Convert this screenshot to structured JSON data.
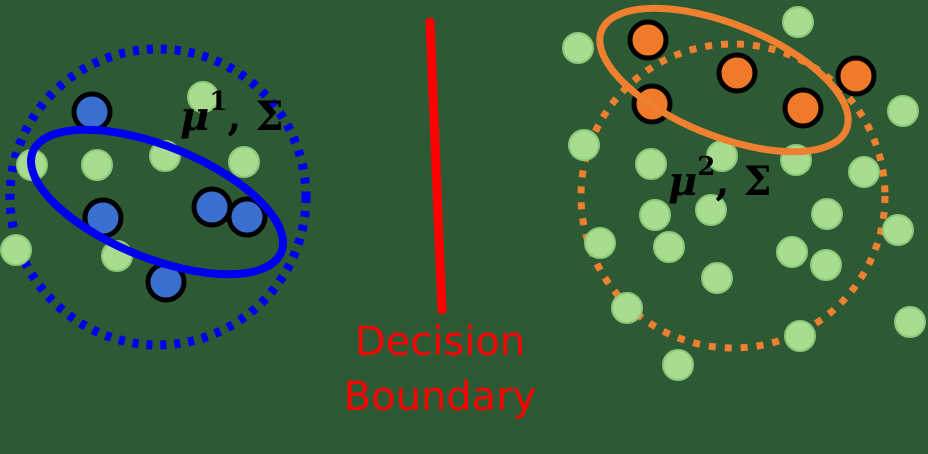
{
  "colors": {
    "background": "#2e5935",
    "decision_boundary": "#ff0000",
    "class1": "#3a6fd0",
    "class1_outline": "#0000ee",
    "class2": "#f07a2a",
    "class2_outline": "#ee8030",
    "unlabeled": "#a8dc90"
  },
  "labels": {
    "left_mu": "μ",
    "left_sup": "1",
    "left_sigma": ", Σ",
    "right_mu": "μ",
    "right_sup": "2",
    "right_sigma": ", Σ",
    "boundary_line1": "Decision",
    "boundary_line2": "Boundary"
  }
}
